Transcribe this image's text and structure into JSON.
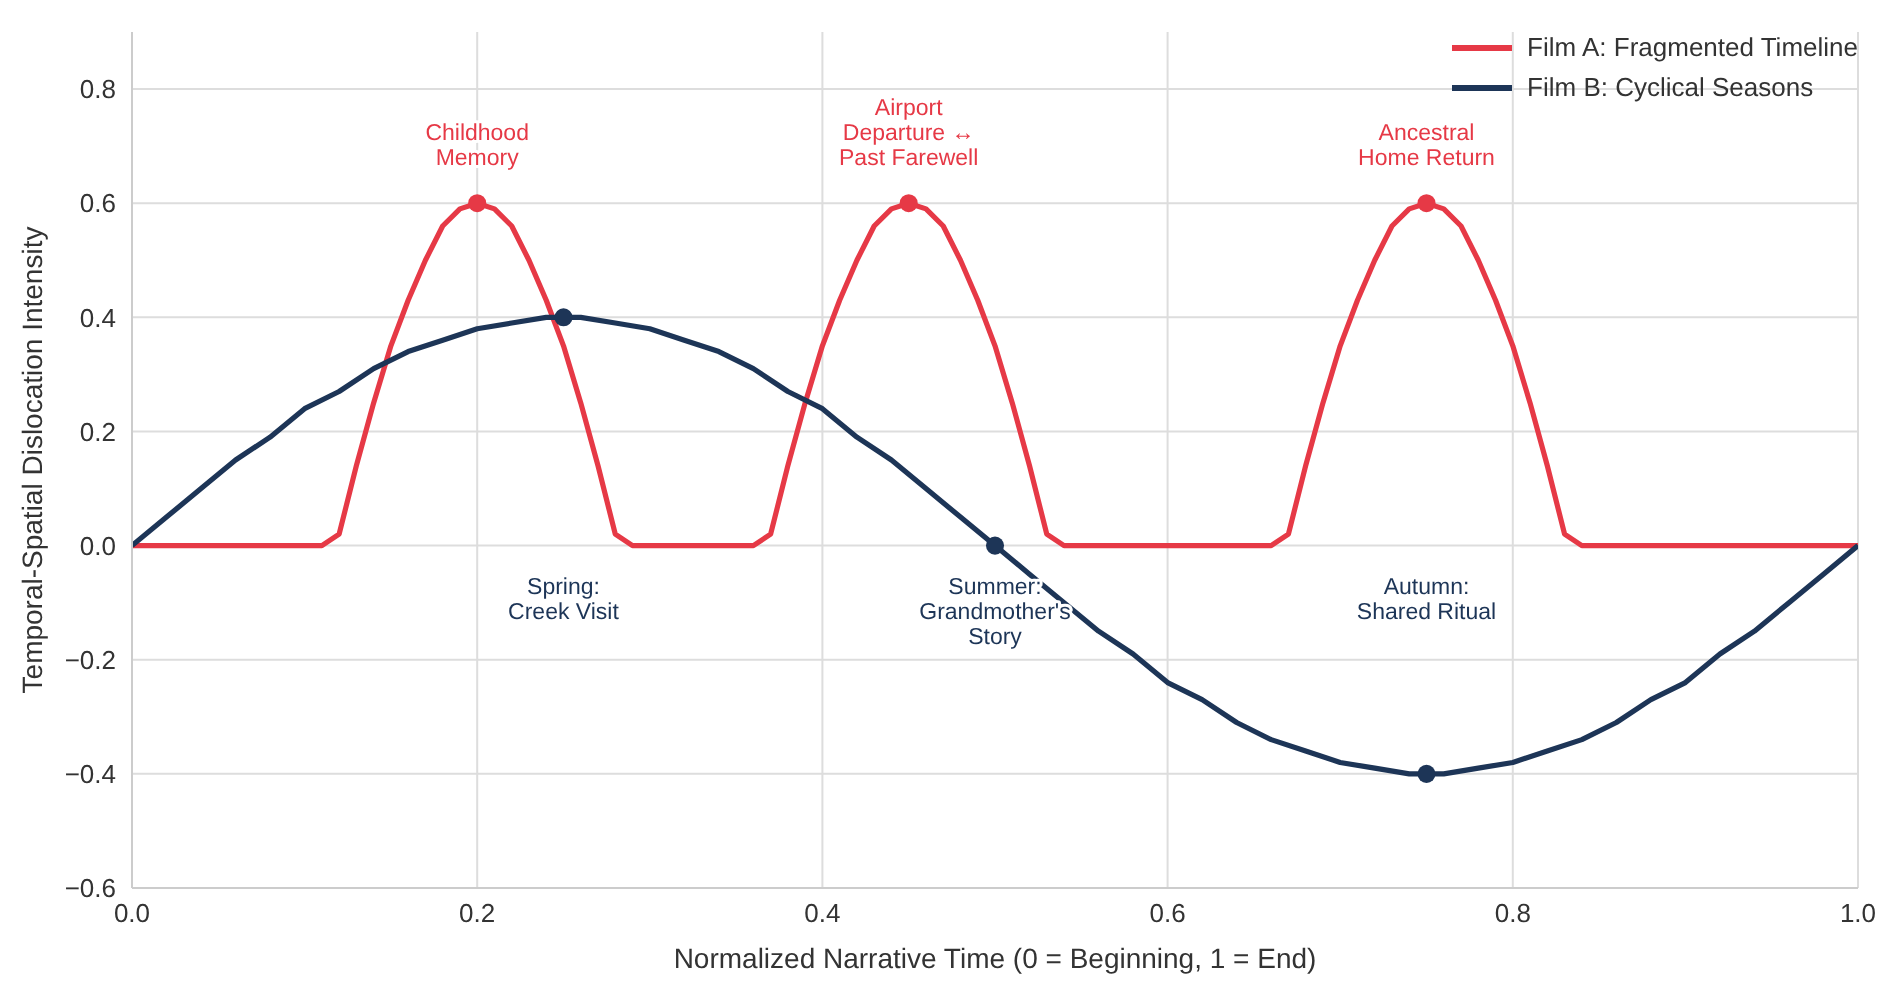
{
  "chart_data": {
    "type": "line",
    "xlabel": "Normalized Narrative Time (0 = Beginning, 1 = End)",
    "ylabel": "Temporal-Spatial Dislocation Intensity",
    "xlim": [
      0,
      1
    ],
    "xticks": [
      {
        "value": 0,
        "label": "0.0"
      },
      {
        "value": 0.2,
        "label": "0.2"
      },
      {
        "value": 0.4,
        "label": "0.4"
      },
      {
        "value": 0.6,
        "label": "0.6"
      },
      {
        "value": 0.8,
        "label": "0.8"
      },
      {
        "value": 1,
        "label": "1.0"
      }
    ],
    "ylim": [
      -0.6,
      0.9
    ],
    "yticks": [
      {
        "value": -0.6,
        "label": "−0.6"
      },
      {
        "value": -0.4,
        "label": "−0.4"
      },
      {
        "value": -0.2,
        "label": "−0.2"
      },
      {
        "value": 0,
        "label": "0.0"
      },
      {
        "value": 0.2,
        "label": "0.2"
      },
      {
        "value": 0.4,
        "label": "0.4"
      },
      {
        "value": 0.6,
        "label": "0.6"
      },
      {
        "value": 0.8,
        "label": "0.8"
      }
    ],
    "grid": true,
    "legend": "top right",
    "marker": "none",
    "line_style": "solid",
    "series": [
      {
        "name": "Film A: Fragmented Timeline",
        "color": "#e63946",
        "x": [
          0,
          0.11,
          0.12,
          0.13,
          0.14,
          0.15,
          0.16,
          0.17,
          0.18,
          0.19,
          0.2,
          0.21,
          0.22,
          0.23,
          0.24,
          0.25,
          0.26,
          0.27,
          0.28,
          0.29,
          0.36,
          0.37,
          0.38,
          0.39,
          0.4,
          0.41,
          0.42,
          0.43,
          0.44,
          0.45,
          0.46,
          0.47,
          0.48,
          0.49,
          0.5,
          0.51,
          0.52,
          0.53,
          0.54,
          0.66,
          0.67,
          0.68,
          0.69,
          0.7,
          0.71,
          0.72,
          0.73,
          0.74,
          0.75,
          0.76,
          0.77,
          0.78,
          0.79,
          0.8,
          0.81,
          0.82,
          0.83,
          0.84,
          1
        ],
        "values": [
          0,
          0,
          0.02,
          0.14,
          0.25,
          0.35,
          0.43,
          0.5,
          0.56,
          0.59,
          0.6,
          0.59,
          0.56,
          0.5,
          0.43,
          0.35,
          0.25,
          0.14,
          0.02,
          0,
          0,
          0.02,
          0.14,
          0.25,
          0.35,
          0.43,
          0.5,
          0.56,
          0.59,
          0.6,
          0.59,
          0.56,
          0.5,
          0.43,
          0.35,
          0.25,
          0.14,
          0.02,
          0,
          0,
          0.02,
          0.14,
          0.25,
          0.35,
          0.43,
          0.5,
          0.56,
          0.59,
          0.6,
          0.59,
          0.56,
          0.5,
          0.43,
          0.35,
          0.25,
          0.14,
          0.02,
          0,
          0
        ]
      },
      {
        "name": "Film B: Cyclical Seasons",
        "color": "#1d3557",
        "x": [
          0,
          0.02,
          0.04,
          0.06,
          0.08,
          0.1,
          0.12,
          0.14,
          0.16,
          0.18,
          0.2,
          0.22,
          0.24,
          0.26,
          0.28,
          0.3,
          0.32,
          0.34,
          0.36,
          0.38,
          0.4,
          0.42,
          0.44,
          0.46,
          0.48,
          0.5,
          0.52,
          0.54,
          0.56,
          0.58,
          0.6,
          0.62,
          0.64,
          0.66,
          0.68,
          0.7,
          0.72,
          0.74,
          0.76,
          0.78,
          0.8,
          0.82,
          0.84,
          0.86,
          0.88,
          0.9,
          0.92,
          0.94,
          0.96,
          0.98,
          1
        ],
        "values": [
          0,
          0.05,
          0.1,
          0.15,
          0.19,
          0.24,
          0.27,
          0.31,
          0.34,
          0.36,
          0.38,
          0.39,
          0.4,
          0.4,
          0.39,
          0.38,
          0.36,
          0.34,
          0.31,
          0.27,
          0.24,
          0.19,
          0.15,
          0.1,
          0.05,
          0,
          -0.05,
          -0.1,
          -0.15,
          -0.19,
          -0.24,
          -0.27,
          -0.31,
          -0.34,
          -0.36,
          -0.38,
          -0.39,
          -0.4,
          -0.4,
          -0.39,
          -0.38,
          -0.36,
          -0.34,
          -0.31,
          -0.27,
          -0.24,
          -0.19,
          -0.15,
          -0.1,
          -0.05,
          0
        ]
      },
      {
        "color": "#e63946",
        "type": "scatter",
        "marker": "circle",
        "x": [
          0.2,
          0.45,
          0.75
        ],
        "values": [
          0.6,
          0.6,
          0.6
        ]
      },
      {
        "color": "#1d3557",
        "type": "scatter",
        "marker": "circle",
        "x": [
          0.25,
          0.5,
          0.75
        ],
        "values": [
          0.4,
          0,
          -0.4
        ]
      }
    ],
    "annotations": [
      "Childhood\nMemory",
      "Airport\nDeparture ↔\nPast Farewell",
      "Ancestral\nHome Return",
      "Spring:\nCreek Visit",
      "Summer:\nGrandmother's\nStory",
      "Autumn:\nShared Ritual"
    ]
  }
}
